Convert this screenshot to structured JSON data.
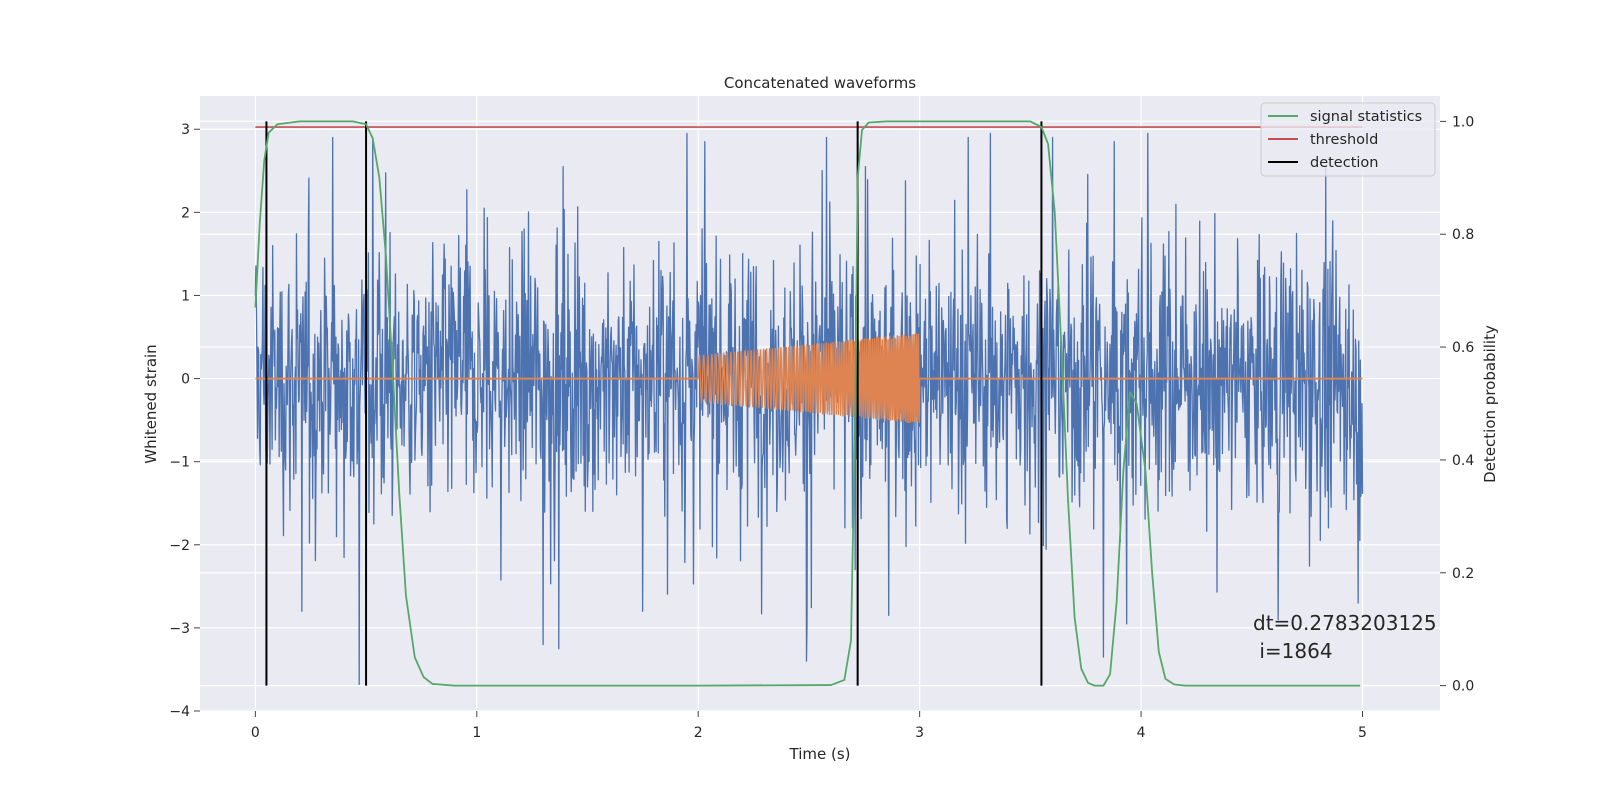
{
  "chart_data": {
    "type": "line",
    "title": "Concatenated waveforms",
    "xlabel": "Time (s)",
    "ylabel": "Whitened strain",
    "y2label": "Detection probability",
    "xlim": [
      -0.25,
      5.35
    ],
    "ylim": [
      -4.0,
      3.4
    ],
    "y2lim": [
      -0.045,
      1.045
    ],
    "x_ticks": [
      0,
      1,
      2,
      3,
      4,
      5
    ],
    "y_ticks": [
      -4,
      -3,
      -2,
      -1,
      0,
      1,
      2,
      3
    ],
    "y_tick_labels": [
      "−4",
      "−3",
      "−2",
      "−1",
      "0",
      "1",
      "2",
      "3"
    ],
    "y2_ticks": [
      0.0,
      0.2,
      0.4,
      0.6,
      0.8,
      1.0
    ],
    "y2_tick_labels": [
      "0.0",
      "0.2",
      "0.4",
      "0.6",
      "0.8",
      "1.0"
    ],
    "grid": true,
    "legend_position": "top-right",
    "legend": [
      {
        "label": "signal statistics",
        "color": "#55a868"
      },
      {
        "label": "threshold",
        "color": "#c44e52"
      },
      {
        "label": "detection",
        "color": "#000000"
      }
    ],
    "annotation": [
      "dt=0.2783203125",
      " i=1864"
    ],
    "colors": {
      "strain": "#4c72b0",
      "template": "#dd8452",
      "signal_statistics": "#55a868",
      "threshold": "#c44e52",
      "detection": "#000000",
      "plot_background": "#eaeaf2",
      "grid": "#ffffff"
    },
    "strain": {
      "x_range": [
        0,
        5
      ],
      "envelope_min": -3.6,
      "envelope_max": 3.0,
      "samples": 2048,
      "spikes": [
        [
          0.47,
          -3.68
        ],
        [
          0.35,
          2.9
        ],
        [
          0.53,
          2.9
        ],
        [
          1.95,
          2.95
        ],
        [
          2.58,
          2.9
        ],
        [
          2.49,
          -3.4
        ],
        [
          3.22,
          2.9
        ],
        [
          3.32,
          2.95
        ],
        [
          3.88,
          2.85
        ],
        [
          3.83,
          -3.35
        ],
        [
          1.3,
          -3.2
        ],
        [
          1.37,
          -3.25
        ],
        [
          1.75,
          -2.8
        ],
        [
          4.62,
          -2.9
        ],
        [
          4.98,
          -2.7
        ],
        [
          2.03,
          2.85
        ],
        [
          3.6,
          2.9
        ],
        [
          4.03,
          2.95
        ],
        [
          2.86,
          -2.85
        ],
        [
          0.21,
          -2.8
        ]
      ]
    },
    "template": {
      "baseline": 0.0,
      "chirp_start": 2.0,
      "chirp_end": 3.0,
      "amplitude_start": 0.28,
      "amplitude_end": 0.55
    },
    "signal_statistics": {
      "x": [
        0.0,
        0.02,
        0.04,
        0.06,
        0.1,
        0.2,
        0.3,
        0.44,
        0.5,
        0.53,
        0.56,
        0.59,
        0.62,
        0.65,
        0.68,
        0.72,
        0.76,
        0.8,
        0.9,
        1.0,
        2.0,
        2.6,
        2.66,
        2.69,
        2.71,
        2.72,
        2.74,
        2.77,
        2.85,
        3.0,
        3.5,
        3.55,
        3.58,
        3.61,
        3.64,
        3.67,
        3.7,
        3.73,
        3.76,
        3.79,
        3.83,
        3.86,
        3.89,
        3.92,
        3.95,
        3.98,
        4.02,
        4.05,
        4.08,
        4.11,
        4.15,
        4.2,
        4.3,
        4.99
      ],
      "y": [
        0.67,
        0.82,
        0.93,
        0.98,
        0.995,
        1.0,
        1.0,
        1.0,
        0.995,
        0.97,
        0.9,
        0.76,
        0.56,
        0.34,
        0.16,
        0.05,
        0.015,
        0.003,
        0.0,
        0.0,
        0.0,
        0.001,
        0.01,
        0.08,
        0.5,
        0.9,
        0.985,
        0.998,
        1.0,
        1.0,
        1.0,
        0.99,
        0.96,
        0.84,
        0.6,
        0.33,
        0.12,
        0.03,
        0.005,
        0.0,
        0.0,
        0.02,
        0.15,
        0.38,
        0.52,
        0.5,
        0.38,
        0.2,
        0.06,
        0.012,
        0.002,
        0.0,
        0.0,
        0.0
      ]
    },
    "threshold": {
      "value": 0.99,
      "x_range": [
        0,
        5
      ]
    },
    "detections": [
      0.05,
      0.5,
      2.72,
      3.55
    ]
  }
}
